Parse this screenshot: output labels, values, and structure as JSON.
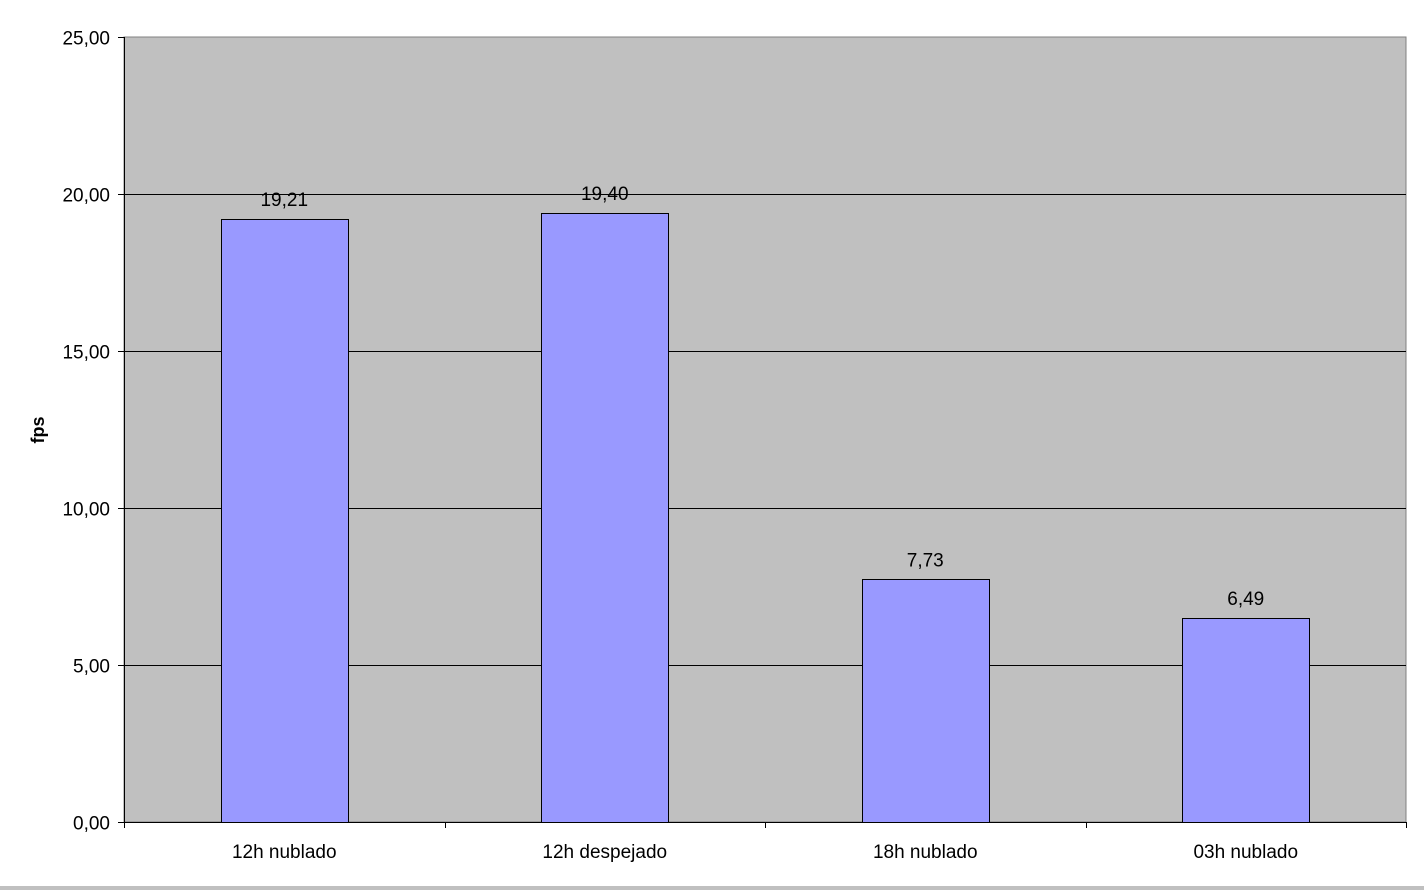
{
  "chart_data": {
    "type": "bar",
    "title": "",
    "xlabel": "",
    "ylabel": "fps",
    "categories": [
      "12h nublado",
      "12h despejado",
      "18h nublado",
      "03h nublado"
    ],
    "values": [
      19.21,
      19.4,
      7.73,
      6.49
    ],
    "data_labels": [
      "19,21",
      "19,40",
      "7,73",
      "6,49"
    ],
    "ylim": [
      0,
      25
    ],
    "yticks": [
      0,
      5,
      10,
      15,
      20,
      25
    ],
    "ytick_labels": [
      "0,00",
      "5,00",
      "10,00",
      "15,00",
      "20,00",
      "25,00"
    ],
    "grid": true,
    "legend": "none",
    "colors": {
      "bar": "#9999ff",
      "plot_background": "#c0c0c0",
      "gridline": "#000000"
    }
  }
}
